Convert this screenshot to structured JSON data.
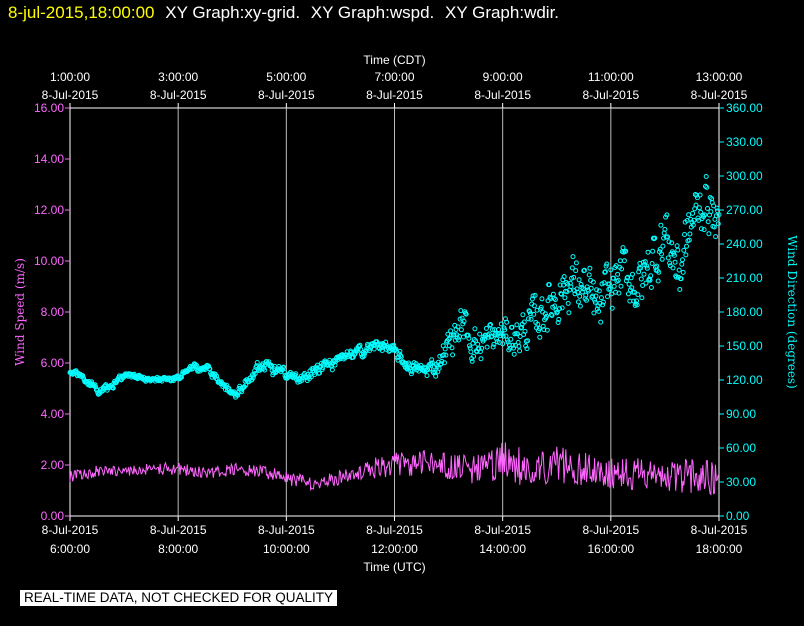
{
  "header": {
    "timestamp": "8-jul-2015,18:00:00",
    "graph_titles": [
      "XY Graph:xy-grid.",
      "XY Graph:wspd.",
      "XY Graph:wdir."
    ]
  },
  "notice": "REAL-TIME DATA, NOT CHECKED FOR QUALITY",
  "colors": {
    "background": "#000000",
    "axes": "#ffffff",
    "wind_speed": "#ff66ff",
    "wind_direction": "#00ffff",
    "timestamp": "#ffff00"
  },
  "chart_data": {
    "type": "scatter",
    "grid": true,
    "x_top_axis": {
      "label": "Time (CDT)",
      "ticks": [
        {
          "time": "1:00:00",
          "date": "8-Jul-2015"
        },
        {
          "time": "3:00:00",
          "date": "8-Jul-2015"
        },
        {
          "time": "5:00:00",
          "date": "8-Jul-2015"
        },
        {
          "time": "7:00:00",
          "date": "8-Jul-2015"
        },
        {
          "time": "9:00:00",
          "date": "8-Jul-2015"
        },
        {
          "time": "11:00:00",
          "date": "8-Jul-2015"
        },
        {
          "time": "13:00:00",
          "date": "8-Jul-2015"
        }
      ]
    },
    "x_bottom_axis": {
      "label": "Time (UTC)",
      "xlim": [
        "2015-07-08 06:00",
        "2015-07-08 18:00"
      ],
      "ticks": [
        {
          "date": "8-Jul-2015",
          "time": "6:00:00"
        },
        {
          "date": "8-Jul-2015",
          "time": "8:00:00"
        },
        {
          "date": "8-Jul-2015",
          "time": "10:00:00"
        },
        {
          "date": "8-Jul-2015",
          "time": "12:00:00"
        },
        {
          "date": "8-Jul-2015",
          "time": "14:00:00"
        },
        {
          "date": "8-Jul-2015",
          "time": "16:00:00"
        },
        {
          "date": "8-Jul-2015",
          "time": "18:00:00"
        }
      ]
    },
    "y_left_axis": {
      "label": "Wind Speed (m/s)",
      "ylim": [
        0,
        16
      ],
      "ticks": [
        "0.00",
        "2.00",
        "4.00",
        "6.00",
        "8.00",
        "10.00",
        "12.00",
        "14.00",
        "16.00"
      ]
    },
    "y_right_axis": {
      "label": "Wind Direction (degrees)",
      "ylim": [
        0,
        360
      ],
      "ticks": [
        "0.00",
        "30.00",
        "60.00",
        "90.00",
        "120.00",
        "150.00",
        "180.00",
        "210.00",
        "240.00",
        "270.00",
        "300.00",
        "330.00",
        "360.00"
      ]
    },
    "series": [
      {
        "name": "Wind Speed",
        "axis": "left",
        "style": "line",
        "x": [
          "06:00",
          "06:30",
          "07:00",
          "07:30",
          "08:00",
          "08:30",
          "09:00",
          "09:30",
          "10:00",
          "10:30",
          "11:00",
          "11:30",
          "12:00",
          "12:30",
          "13:00",
          "13:30",
          "14:00",
          "14:30",
          "15:00",
          "15:30",
          "16:00",
          "16:30",
          "17:00",
          "17:30",
          "18:00"
        ],
        "y": [
          1.6,
          1.8,
          1.7,
          1.9,
          1.9,
          1.7,
          1.8,
          1.8,
          1.5,
          1.2,
          1.5,
          1.9,
          2.1,
          2.2,
          2.0,
          1.9,
          2.1,
          2.0,
          2.2,
          1.9,
          1.8,
          1.7,
          1.4,
          1.5,
          1.3
        ],
        "range_low": [
          1.2,
          1.4,
          1.5,
          1.5,
          1.5,
          1.4,
          1.4,
          1.4,
          1.1,
          0.9,
          1.1,
          1.3,
          1.3,
          1.4,
          1.1,
          1.0,
          1.0,
          0.8,
          1.0,
          0.9,
          0.8,
          0.7,
          0.6,
          0.6,
          0.5
        ],
        "range_high": [
          1.9,
          2.1,
          2.0,
          2.2,
          2.2,
          2.0,
          2.2,
          2.1,
          1.9,
          1.6,
          1.9,
          2.4,
          2.7,
          2.8,
          2.7,
          2.6,
          3.3,
          2.9,
          3.1,
          2.8,
          2.7,
          2.6,
          2.4,
          2.6,
          2.5
        ]
      },
      {
        "name": "Wind Direction",
        "axis": "right",
        "style": "points",
        "x": [
          "06:00",
          "06:15",
          "06:30",
          "06:45",
          "07:00",
          "07:15",
          "07:30",
          "07:45",
          "08:00",
          "08:15",
          "08:30",
          "08:45",
          "09:00",
          "09:15",
          "09:30",
          "09:45",
          "10:00",
          "10:15",
          "10:30",
          "10:45",
          "11:00",
          "11:15",
          "11:30",
          "11:45",
          "12:00",
          "12:15",
          "12:30",
          "12:45",
          "13:00",
          "13:15",
          "13:30",
          "13:45",
          "14:00",
          "14:15",
          "14:30",
          "14:45",
          "15:00",
          "15:15",
          "15:30",
          "15:45",
          "16:00",
          "16:15",
          "16:30",
          "16:45",
          "17:00",
          "17:15",
          "17:30",
          "17:45",
          "18:00"
        ],
        "y": [
          128,
          122,
          110,
          115,
          126,
          122,
          120,
          121,
          122,
          131,
          130,
          120,
          106,
          119,
          134,
          128,
          126,
          118,
          131,
          132,
          137,
          143,
          148,
          152,
          143,
          132,
          128,
          132,
          153,
          170,
          150,
          155,
          160,
          158,
          168,
          182,
          195,
          207,
          200,
          178,
          205,
          215,
          200,
          225,
          250,
          215,
          262,
          280,
          250
        ],
        "spread": [
          5,
          5,
          6,
          5,
          5,
          4,
          4,
          4,
          4,
          6,
          6,
          6,
          6,
          8,
          10,
          8,
          7,
          8,
          10,
          9,
          9,
          9,
          9,
          9,
          10,
          9,
          10,
          16,
          22,
          28,
          30,
          28,
          26,
          28,
          34,
          36,
          40,
          40,
          42,
          42,
          40,
          42,
          42,
          45,
          45,
          55,
          45,
          42,
          30
        ]
      }
    ]
  }
}
